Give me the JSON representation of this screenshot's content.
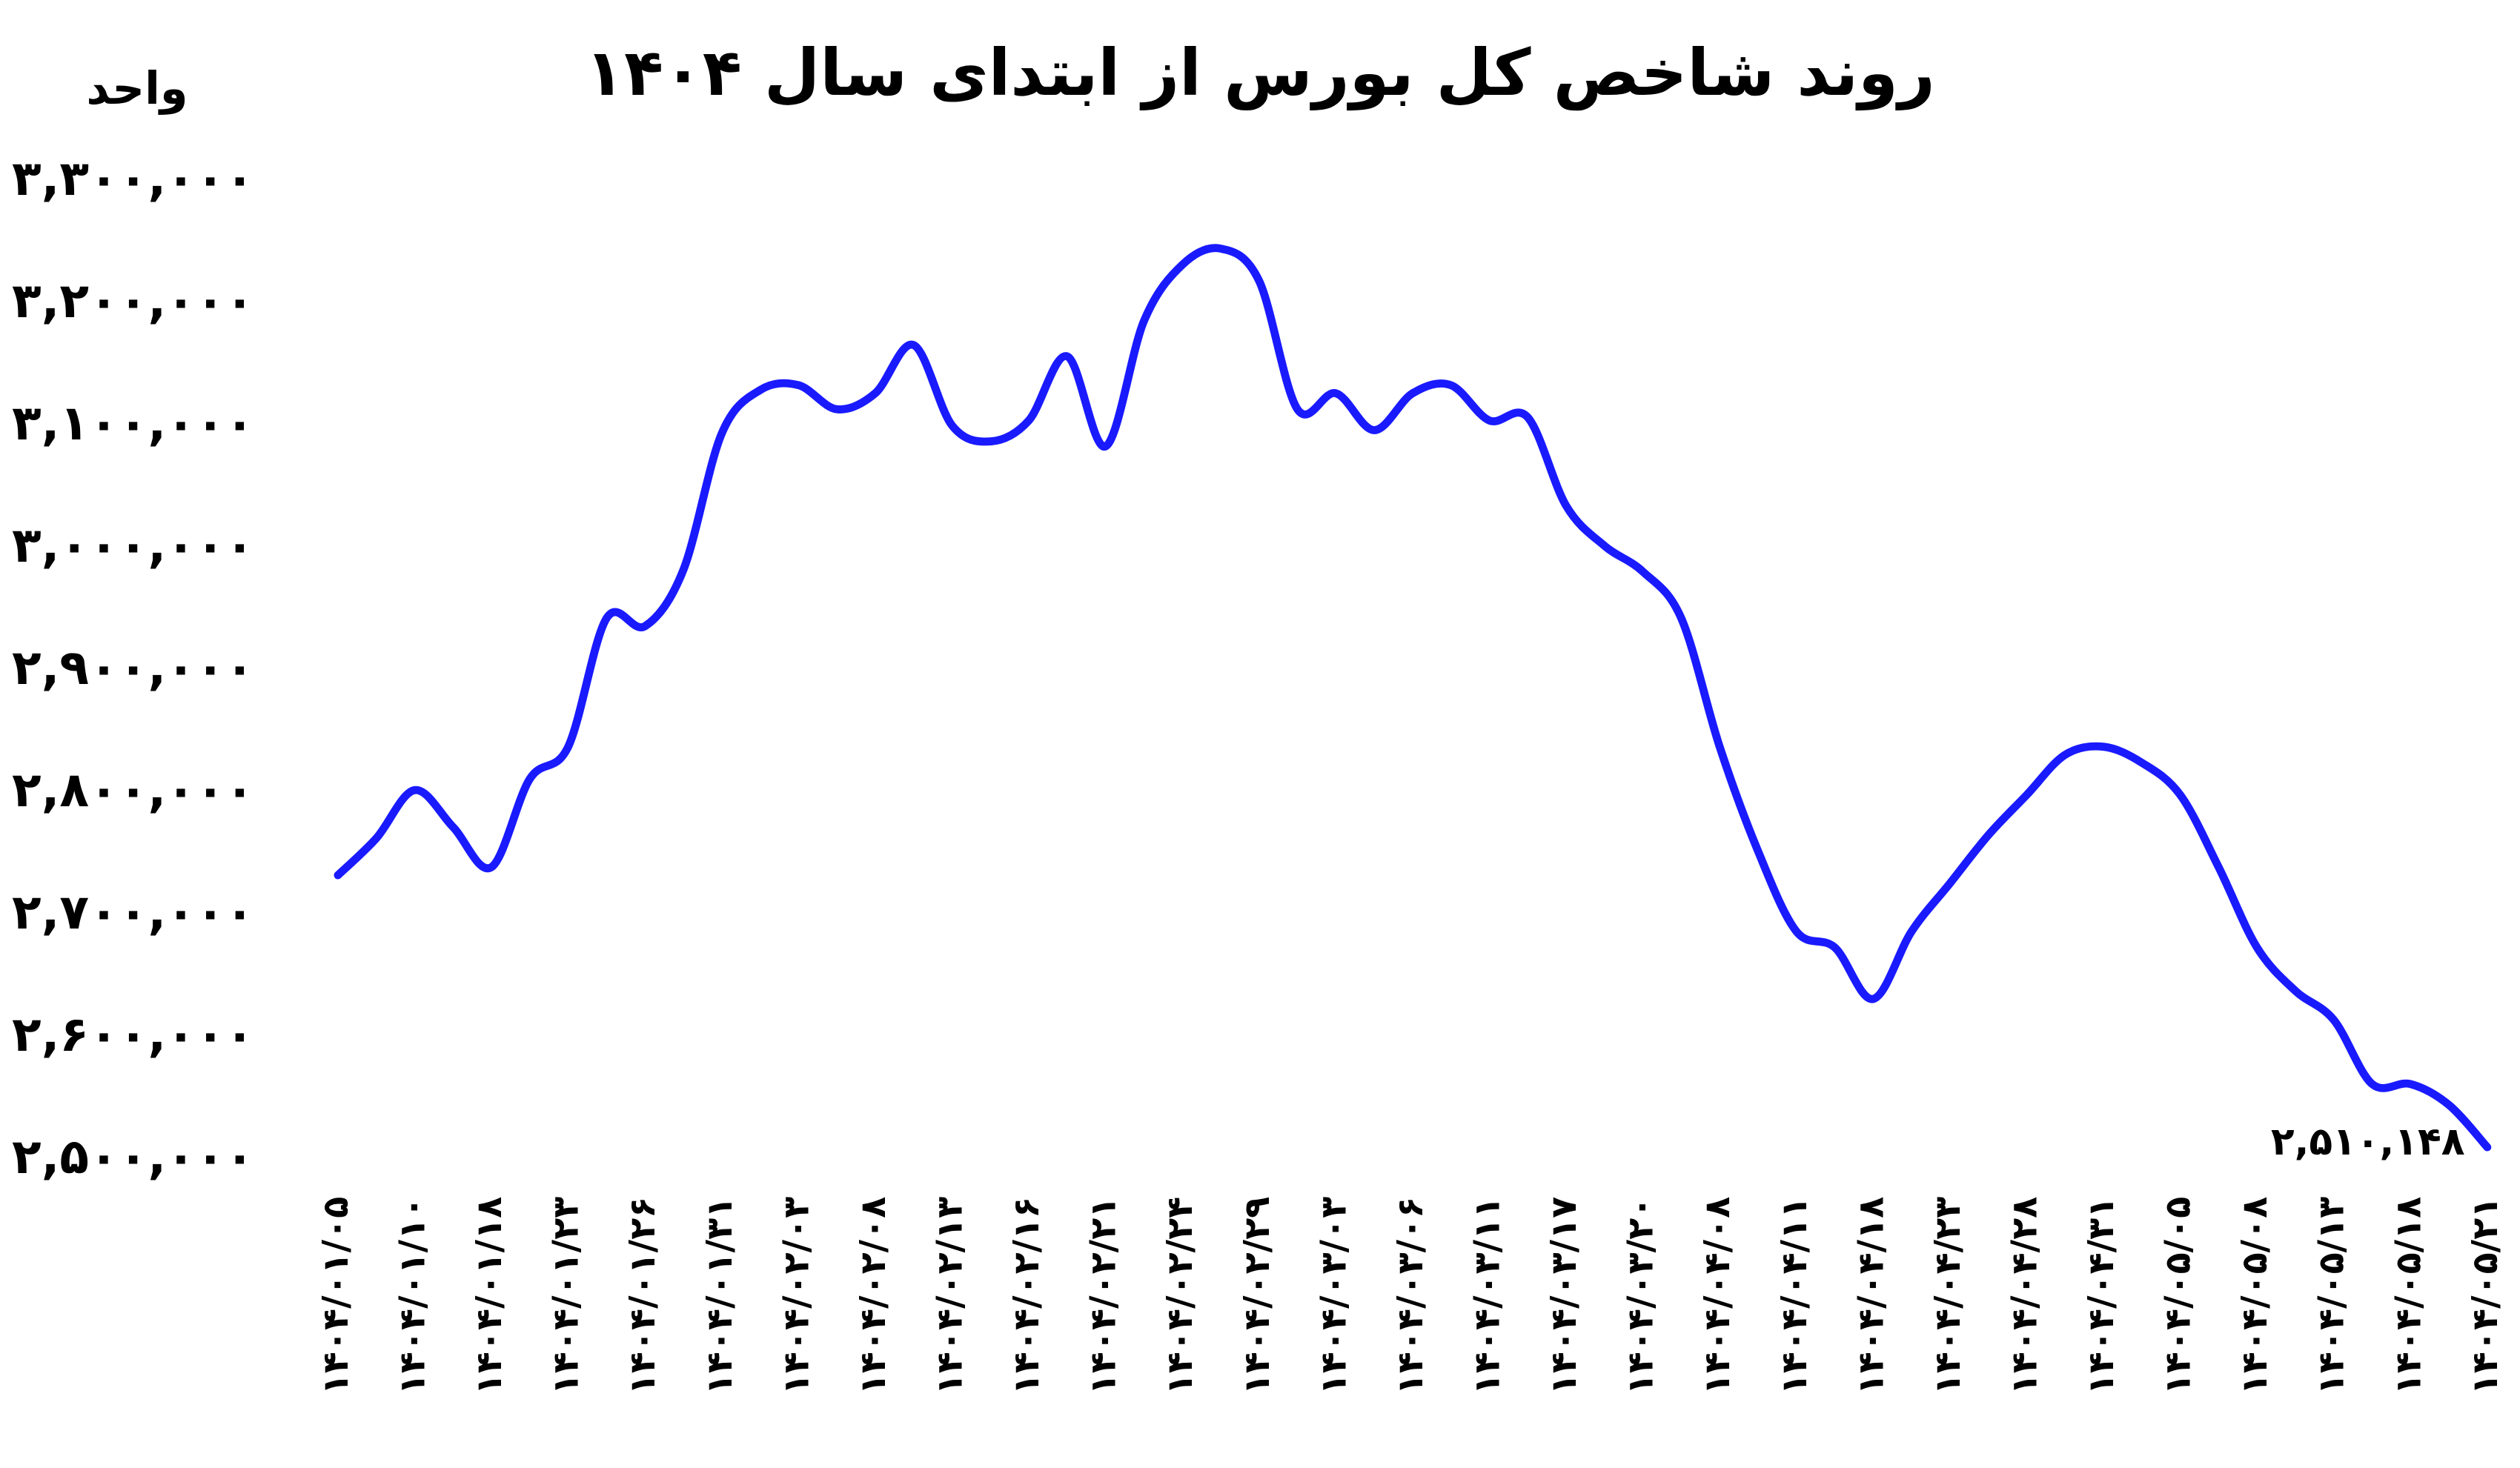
{
  "chart_data": {
    "type": "line",
    "title": "روند شاخص کل بورس از ابتدای سال ۱۴۰۴",
    "y_label": "واحد",
    "categories": [
      "۱۴۰۴/۰۱/۰۵",
      null,
      "۱۴۰۴/۰۱/۱۰",
      null,
      "۱۴۰۴/۰۱/۱۸",
      null,
      "۱۴۰۴/۰۱/۲۳",
      null,
      "۱۴۰۴/۰۱/۲۶",
      null,
      "۱۴۰۴/۰۱/۳۱",
      null,
      "۱۴۰۴/۰۲/۰۳",
      null,
      "۱۴۰۴/۰۲/۰۸",
      null,
      "۱۴۰۴/۰۲/۱۳",
      null,
      "۱۴۰۴/۰۲/۱۶",
      null,
      "۱۴۰۴/۰۲/۲۱",
      null,
      "۱۴۰۴/۰۲/۲۴",
      null,
      "۱۴۰۴/۰۲/۲۹",
      null,
      "۱۴۰۴/۰۳/۰۳",
      null,
      "۱۴۰۴/۰۳/۰۶",
      null,
      "۱۴۰۴/۰۳/۱۱",
      null,
      "۱۴۰۴/۰۳/۱۷",
      null,
      "۱۴۰۴/۰۳/۲۰",
      null,
      "۱۴۰۴/۰۴/۰۸",
      null,
      "۱۴۰۴/۰۴/۱۱",
      null,
      "۱۴۰۴/۰۴/۱۸",
      null,
      "۱۴۰۴/۰۴/۲۳",
      null,
      "۱۴۰۴/۰۴/۲۸",
      null,
      "۱۴۰۴/۰۴/۳۱",
      null,
      "۱۴۰۴/۰۵/۰۵",
      null,
      "۱۴۰۴/۰۵/۰۸",
      null,
      "۱۴۰۴/۰۵/۱۳",
      null,
      "۱۴۰۴/۰۵/۱۸",
      null,
      "۱۴۰۴/۰۵/۲۱"
    ],
    "values": [
      2732600,
      2762800,
      2802200,
      2772000,
      2739200,
      2811400,
      2837700,
      2942800,
      2936300,
      2982300,
      3093900,
      3129400,
      3133400,
      3113700,
      3126800,
      3166200,
      3100500,
      3087400,
      3104500,
      3157000,
      3083400,
      3185900,
      3231900,
      3245100,
      3218800,
      3113700,
      3126800,
      3096600,
      3126800,
      3133400,
      3104500,
      3107100,
      3034800,
      3002000,
      2980900,
      2942800,
      2837700,
      2752300,
      2686600,
      2673500,
      2631400,
      2686600,
      2726000,
      2765400,
      2798300,
      2831100,
      2837700,
      2824600,
      2798300,
      2739200,
      2673500,
      2638000,
      2614300,
      2561800,
      2561800,
      2544700,
      2510148
    ],
    "value_labels": [
      null,
      null,
      null,
      null,
      null,
      null,
      null,
      null,
      null,
      null,
      null,
      null,
      null,
      null,
      null,
      null,
      null,
      null,
      null,
      null,
      null,
      null,
      null,
      null,
      null,
      null,
      null,
      null,
      null,
      null,
      null,
      null,
      null,
      null,
      null,
      null,
      null,
      null,
      null,
      null,
      null,
      null,
      null,
      null,
      null,
      null,
      null,
      null,
      null,
      null,
      null,
      null,
      null,
      null,
      null,
      null,
      "۲,۵۱۰,۱۴۸"
    ],
    "color": "#1a1aff",
    "ylim": [
      2500000,
      3300000
    ],
    "yticks": [
      {
        "value": 2500000,
        "label": "۲,۵۰۰,۰۰۰"
      },
      {
        "value": 2600000,
        "label": "۲,۶۰۰,۰۰۰"
      },
      {
        "value": 2700000,
        "label": "۲,۷۰۰,۰۰۰"
      },
      {
        "value": 2800000,
        "label": "۲,۸۰۰,۰۰۰"
      },
      {
        "value": 2900000,
        "label": "۲,۹۰۰,۰۰۰"
      },
      {
        "value": 3000000,
        "label": "۳,۰۰۰,۰۰۰"
      },
      {
        "value": 3100000,
        "label": "۳,۱۰۰,۰۰۰"
      },
      {
        "value": 3200000,
        "label": "۳,۲۰۰,۰۰۰"
      },
      {
        "value": 3300000,
        "label": "۳,۳۰۰,۰۰۰"
      }
    ],
    "grid": false
  }
}
